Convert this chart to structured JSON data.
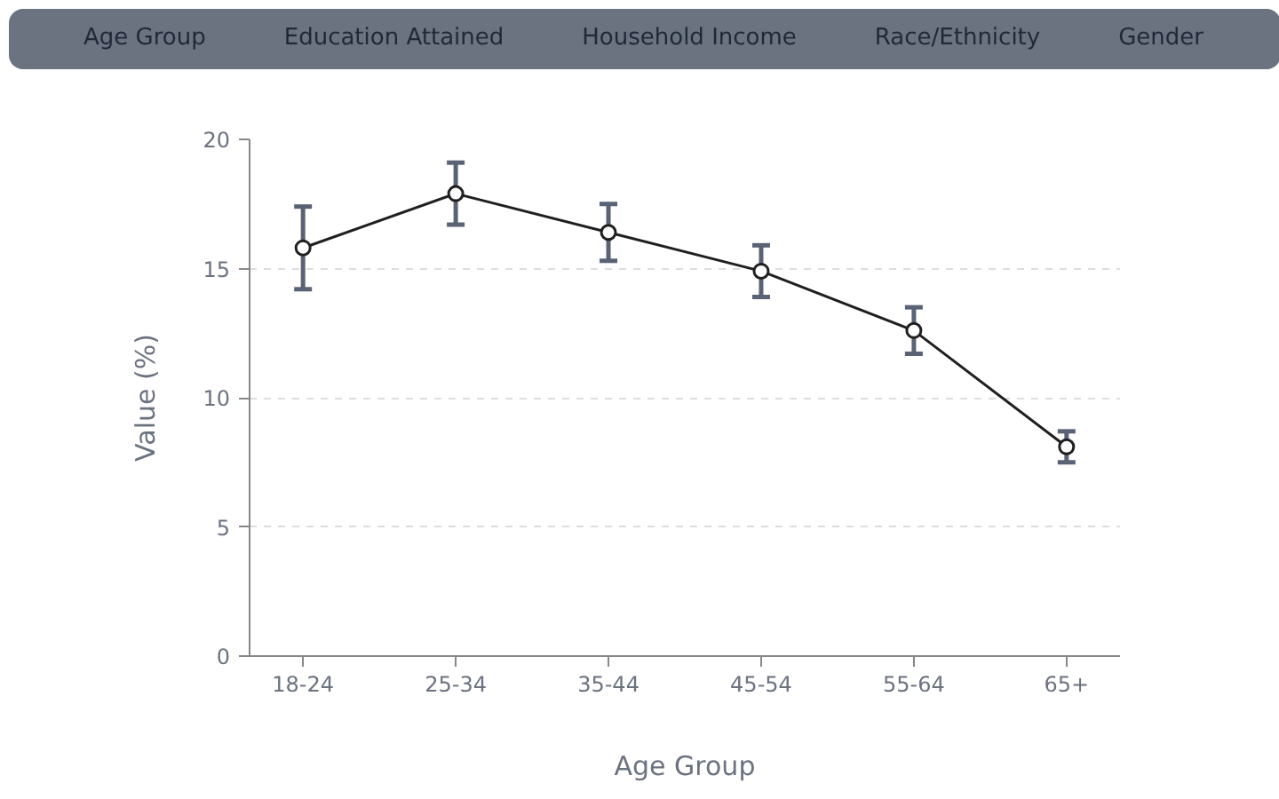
{
  "chart_data": {
    "type": "line",
    "xlabel": "Age Group",
    "ylabel": "Value (%)",
    "categories": [
      "18-24",
      "25-34",
      "35-44",
      "45-54",
      "55-64",
      "65+"
    ],
    "series": [
      {
        "color": "#1f1f1f",
        "values": [
          15.8,
          17.9,
          16.4,
          14.9,
          12.6,
          8.1
        ],
        "errors": [
          [
            14.2,
            17.4
          ],
          [
            16.7,
            19.1
          ],
          [
            15.3,
            17.5
          ],
          [
            13.9,
            15.9
          ],
          [
            11.7,
            13.5
          ],
          [
            7.5,
            8.7
          ]
        ]
      }
    ],
    "ylim": [
      0,
      20
    ],
    "yticks": [
      0,
      5,
      10,
      15,
      20
    ],
    "grid": "y",
    "marker": "circle",
    "line_style": "solid",
    "annotations": [
      "Age Group",
      "Education Attained",
      "Household Income",
      "Race/Ethnicity",
      "Gender"
    ]
  }
}
